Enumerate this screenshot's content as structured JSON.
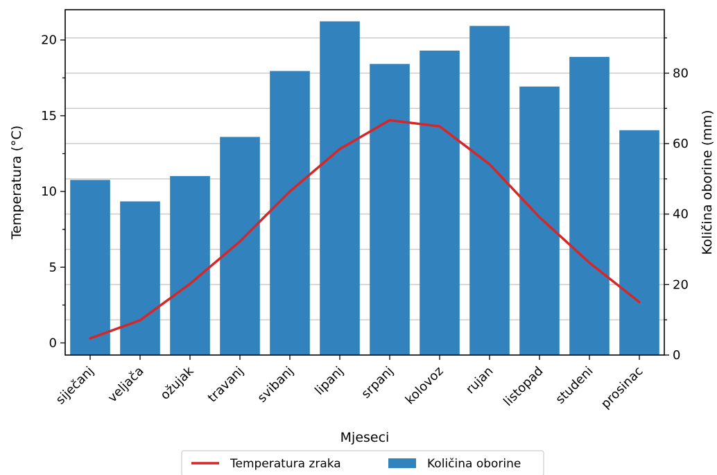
{
  "chart_data": {
    "type": "bar",
    "categories": [
      "siječanj",
      "veljača",
      "ožujak",
      "travanj",
      "svibanj",
      "lipanj",
      "srpanj",
      "kolovoz",
      "rujan",
      "listopad",
      "studeni",
      "prosinac"
    ],
    "series": [
      {
        "name": "Količina oborine",
        "type": "bar",
        "axis": "right",
        "values": [
          49.7,
          43.6,
          50.8,
          61.9,
          80.6,
          94.7,
          82.6,
          86.4,
          93.4,
          76.2,
          84.6,
          63.8
        ],
        "color": "#3182bd"
      },
      {
        "name": "Temperatura zraka",
        "type": "line",
        "axis": "left",
        "values": [
          0.3,
          1.5,
          3.9,
          6.7,
          10.0,
          12.8,
          14.7,
          14.3,
          11.8,
          8.3,
          5.3,
          2.7
        ],
        "color": "#d62728"
      }
    ],
    "xlabel": "Mjeseci",
    "ylabel": "Temperatura (°C)",
    "ylabel_right": "Količina oborine (mm)",
    "ylim": [
      -0.8,
      22
    ],
    "ylim_right": [
      0,
      98
    ],
    "yticks": [
      0,
      5,
      10,
      15,
      20
    ],
    "yticks_right": [
      0,
      20,
      40,
      60,
      80
    ],
    "grid": "horizontal, right axis",
    "legend_position": "bottom-center"
  }
}
